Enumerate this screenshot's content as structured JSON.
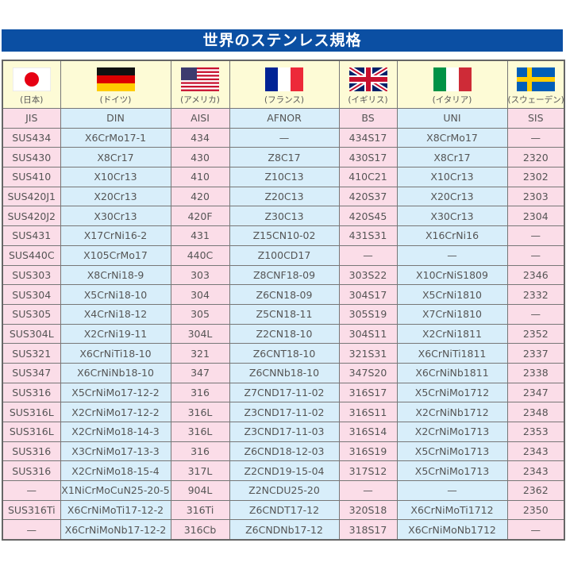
{
  "title": "世界のステンレス規格",
  "countries": [
    {
      "name": "(日本)",
      "flag": "japan-flag-icon",
      "standard": "JIS"
    },
    {
      "name": "(ドイツ)",
      "flag": "germany-flag-icon",
      "standard": "DIN"
    },
    {
      "name": "(アメリカ)",
      "flag": "usa-flag-icon",
      "standard": "AISI"
    },
    {
      "name": "(フランス)",
      "flag": "france-flag-icon",
      "standard": "AFNOR"
    },
    {
      "name": "(イギリス)",
      "flag": "uk-flag-icon",
      "standard": "BS"
    },
    {
      "name": "(イタリア)",
      "flag": "italy-flag-icon",
      "standard": "UNI"
    },
    {
      "name": "(スウェーデン)",
      "flag": "sweden-flag-icon",
      "standard": "SIS"
    }
  ],
  "colors": {
    "title_bg": "#0b4fa3",
    "pink": "#fbdde8",
    "blue": "#d8eefa",
    "cream": "#fdfbd6"
  },
  "rows": [
    [
      "SUS434",
      "X6CrMo17-1",
      "434",
      "—",
      "434S17",
      "X8CrMo17",
      "—"
    ],
    [
      "SUS430",
      "X8Cr17",
      "430",
      "Z8C17",
      "430S17",
      "X8Cr17",
      "2320"
    ],
    [
      "SUS410",
      "X10Cr13",
      "410",
      "Z10C13",
      "410C21",
      "X10Cr13",
      "2302"
    ],
    [
      "SUS420J1",
      "X20Cr13",
      "420",
      "Z20C13",
      "420S37",
      "X20Cr13",
      "2303"
    ],
    [
      "SUS420J2",
      "X30Cr13",
      "420F",
      "Z30C13",
      "420S45",
      "X30Cr13",
      "2304"
    ],
    [
      "SUS431",
      "X17CrNi16-2",
      "431",
      "Z15CN10-02",
      "431S31",
      "X16CrNi16",
      "—"
    ],
    [
      "SUS440C",
      "X105CrMo17",
      "440C",
      "Z100CD17",
      "—",
      "—",
      "—"
    ],
    [
      "SUS303",
      "X8CrNi18-9",
      "303",
      "Z8CNF18-09",
      "303S22",
      "X10CrNiS1809",
      "2346"
    ],
    [
      "SUS304",
      "X5CrNi18-10",
      "304",
      "Z6CN18-09",
      "304S17",
      "X5CrNi1810",
      "2332"
    ],
    [
      "SUS305",
      "X4CrNi18-12",
      "305",
      "Z5CN18-11",
      "305S19",
      "X7CrNi1810",
      "—"
    ],
    [
      "SUS304L",
      "X2CrNi19-11",
      "304L",
      "Z2CN18-10",
      "304S11",
      "X2CrNi1811",
      "2352"
    ],
    [
      "SUS321",
      "X6CrNiTi18-10",
      "321",
      "Z6CNT18-10",
      "321S31",
      "X6CrNiTi1811",
      "2337"
    ],
    [
      "SUS347",
      "X6CrNiNb18-10",
      "347",
      "Z6CNNb18-10",
      "347S20",
      "X6CrNiNb1811",
      "2338"
    ],
    [
      "SUS316",
      "X5CrNiMo17-12-2",
      "316",
      "Z7CND17-11-02",
      "316S17",
      "X5CrNiMo1712",
      "2347"
    ],
    [
      "SUS316L",
      "X2CrNiMo17-12-2",
      "316L",
      "Z3CND17-11-02",
      "316S11",
      "X2CrNiNb1712",
      "2348"
    ],
    [
      "SUS316L",
      "X2CrNiMo18-14-3",
      "316L",
      "Z3CND17-11-03",
      "316S14",
      "X2CrNiMo1713",
      "2353"
    ],
    [
      "SUS316",
      "X3CrNiMo17-13-3",
      "316",
      "Z6CND18-12-03",
      "316S19",
      "X5CrNiMo1713",
      "2343"
    ],
    [
      "SUS316",
      "X2CrNiMo18-15-4",
      "317L",
      "Z2CND19-15-04",
      "317S12",
      "X5CrNiMo1713",
      "2343"
    ],
    [
      "—",
      "X1NiCrMoCuN25-20-5",
      "904L",
      "Z2NCDU25-20",
      "—",
      "—",
      "2362"
    ],
    [
      "SUS316Ti",
      "X6CrNiMoTi17-12-2",
      "316Ti",
      "Z6CNDT17-12",
      "320S18",
      "X6CrNiMoTi1712",
      "2350"
    ],
    [
      "—",
      "X6CrNiMoNb17-12-2",
      "316Cb",
      "Z6CNDNb17-12",
      "318S17",
      "X6CrNiMoNb1712",
      "—"
    ]
  ]
}
